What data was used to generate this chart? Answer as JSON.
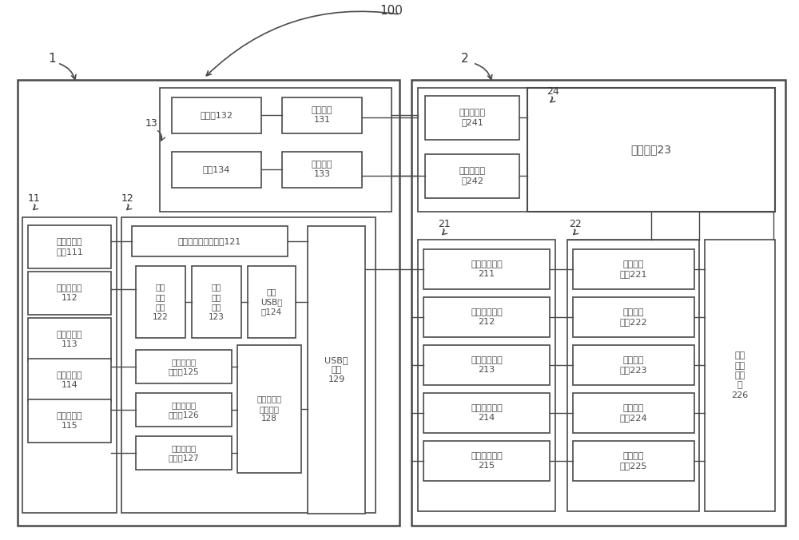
{
  "bg": "#ffffff",
  "lc": "#4a4a4a",
  "fc": "#ffffff",
  "label_100": "100",
  "label_1": "1",
  "label_2": "2",
  "label_11": "11",
  "label_12": "12",
  "label_13": "13",
  "label_24": "24",
  "label_21": "21",
  "label_22": "22",
  "t_disp132": "显示器132",
  "t_iface131": "视频接口\n131",
  "t_earphone134": "耳机134",
  "t_iface133": "音频接口\n133",
  "t_s111": "运动姿态传\n感器111",
  "t_s112": "图像传感器\n112",
  "t_s113": "声音传感器\n113",
  "t_s114": "心率传感器\n114",
  "t_s115": "脑电传感器\n115",
  "t_m121": "第一数字化处理模块121",
  "t_m122": "图像\n同步\n模块\n122",
  "t_m123": "图像\n处理\n模块\n123",
  "t_m124": "高速\nUSB接\n口124",
  "t_m125": "声音信号调\n理模块125",
  "t_m126": "心率信号调\n理模块126",
  "t_m127": "脑电信号调\n理模块127",
  "t_m128": "第二数字化\n处理模块\n128",
  "t_m129": "USB集\n线器\n129",
  "t_d241": "显示输出驱\n动241",
  "t_d242": "声音输出驱\n动242",
  "t_app23": "应用系统23",
  "t_d211": "运动输入驱动\n211",
  "t_d212": "图像输入驱动\n212",
  "t_d213": "声音输入驱动\n213",
  "t_d214": "脑电输入驱动\n214",
  "t_d215": "心率输入驱动\n215",
  "t_r221": "运动识别\n模块221",
  "t_r222": "手势识别\n模块222",
  "t_r223": "语音识别\n模块223",
  "t_r224": "脑电识别\n模块224",
  "t_r225": "心率识别\n模块225",
  "t_r226": "多通\n道融\n合模\n块\n226"
}
